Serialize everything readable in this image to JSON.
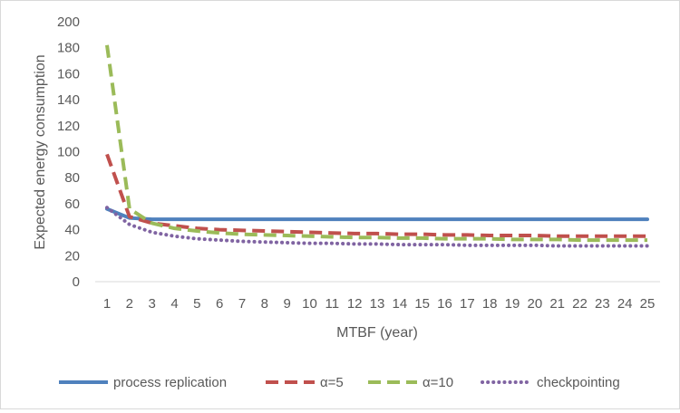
{
  "chart_data": {
    "type": "line",
    "title": "",
    "xlabel": "MTBF (year)",
    "ylabel": "Expected energy consumption",
    "x": [
      1,
      2,
      3,
      4,
      5,
      6,
      7,
      8,
      9,
      10,
      11,
      12,
      13,
      14,
      15,
      16,
      17,
      18,
      19,
      20,
      21,
      22,
      23,
      24,
      25
    ],
    "x_tick_labels": [
      "1",
      "2",
      "3",
      "4",
      "5",
      "6",
      "7",
      "8",
      "9",
      "10",
      "11",
      "12",
      "13",
      "14",
      "15",
      "16",
      "17",
      "18",
      "19",
      "20",
      "21",
      "22",
      "23",
      "24",
      "25"
    ],
    "ylim": [
      0,
      200
    ],
    "y_ticks": [
      0,
      20,
      40,
      60,
      80,
      100,
      120,
      140,
      160,
      180,
      200
    ],
    "y_tick_labels": [
      "0",
      "20",
      "40",
      "60",
      "80",
      "100",
      "120",
      "140",
      "160",
      "180",
      "200"
    ],
    "grid": false,
    "legend_position": "bottom",
    "series": [
      {
        "name": "process replication",
        "style": "solid",
        "color": "#4f81bd",
        "values": [
          56,
          49,
          48,
          48,
          48,
          48,
          48,
          48,
          48,
          48,
          48,
          48,
          48,
          48,
          48,
          48,
          48,
          48,
          48,
          48,
          48,
          48,
          48,
          48,
          48
        ]
      },
      {
        "name": "α=5",
        "style": "dashed",
        "color": "#c0504d",
        "values": [
          98,
          50,
          45,
          43,
          41,
          40,
          39.5,
          39,
          38.5,
          38,
          37.5,
          37,
          37,
          36.5,
          36.5,
          36,
          36,
          35.5,
          35.5,
          35.5,
          35,
          35,
          35,
          35,
          35
        ]
      },
      {
        "name": "α=10",
        "style": "dashed",
        "color": "#9bbb59",
        "values": [
          182,
          56,
          45,
          41,
          39,
          37.5,
          36.5,
          36,
          35.5,
          35,
          34.5,
          34,
          34,
          33.5,
          33.5,
          33,
          33,
          33,
          32.5,
          32.5,
          32.5,
          32,
          32,
          32,
          32
        ]
      },
      {
        "name": "checkpointing",
        "style": "dotted",
        "color": "#8064a2",
        "values": [
          57,
          44,
          38,
          35,
          33,
          32,
          31,
          30.5,
          30,
          29.5,
          29.5,
          29,
          29,
          28.5,
          28.5,
          28.5,
          28,
          28,
          28,
          28,
          27.5,
          27.5,
          27.5,
          27.5,
          27.5
        ]
      }
    ]
  }
}
